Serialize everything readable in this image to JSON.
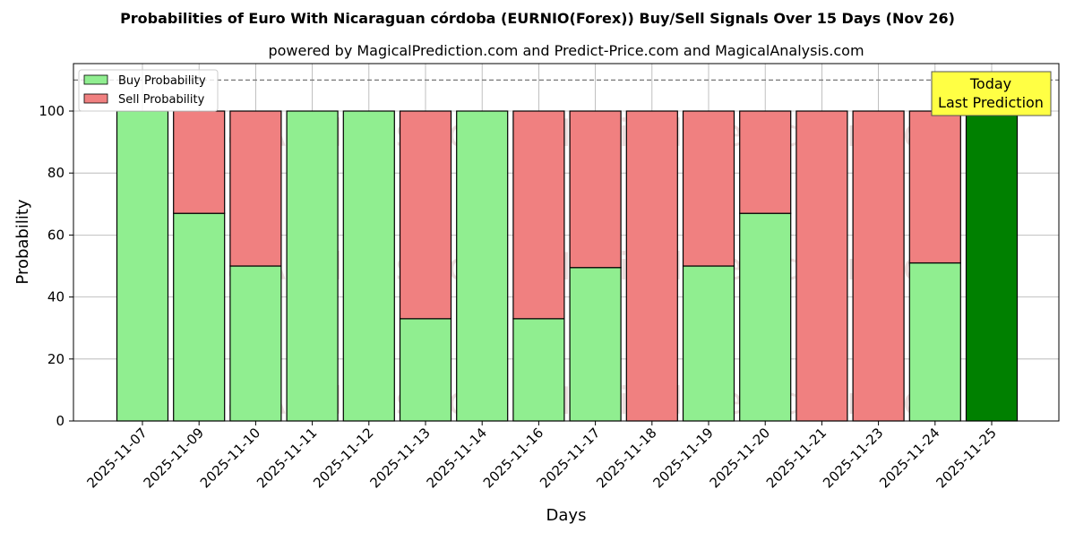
{
  "chart_data": {
    "type": "bar",
    "stacked": true,
    "title": "Probabilities of Euro With Nicaraguan córdoba (EURNIO(Forex)) Buy/Sell Signals Over 15 Days (Nov 26)",
    "subtitle": "powered by MagicalPrediction.com and Predict-Price.com and MagicalAnalysis.com",
    "xlabel": "Days",
    "ylabel": "Probability",
    "ylim": [
      0,
      115
    ],
    "yticks": [
      0,
      20,
      40,
      60,
      80,
      100
    ],
    "grid": true,
    "reference_line": 110,
    "categories": [
      "2025-11-07",
      "2025-11-09",
      "2025-11-10",
      "2025-11-11",
      "2025-11-12",
      "2025-11-13",
      "2025-11-14",
      "2025-11-16",
      "2025-11-17",
      "2025-11-18",
      "2025-11-19",
      "2025-11-20",
      "2025-11-21",
      "2025-11-23",
      "2025-11-24",
      "2025-11-25"
    ],
    "series": [
      {
        "name": "Buy Probability",
        "color": "#90ee90",
        "values": [
          100,
          67,
          50,
          100,
          100,
          33,
          100,
          33,
          49.5,
          0,
          50,
          67,
          0,
          0,
          51,
          100
        ]
      },
      {
        "name": "Sell Probability",
        "color": "#f08080",
        "values": [
          0,
          33,
          50,
          0,
          0,
          67,
          0,
          67,
          50.5,
          100,
          50,
          33,
          100,
          100,
          49,
          0
        ]
      }
    ],
    "today_color": "#008000",
    "legend_position": "top-left",
    "annotation": {
      "line1": "Today",
      "line2": "Last Prediction"
    },
    "watermarks": [
      "MagicalAnalysis.com",
      "MagicalPrediction.com"
    ]
  }
}
